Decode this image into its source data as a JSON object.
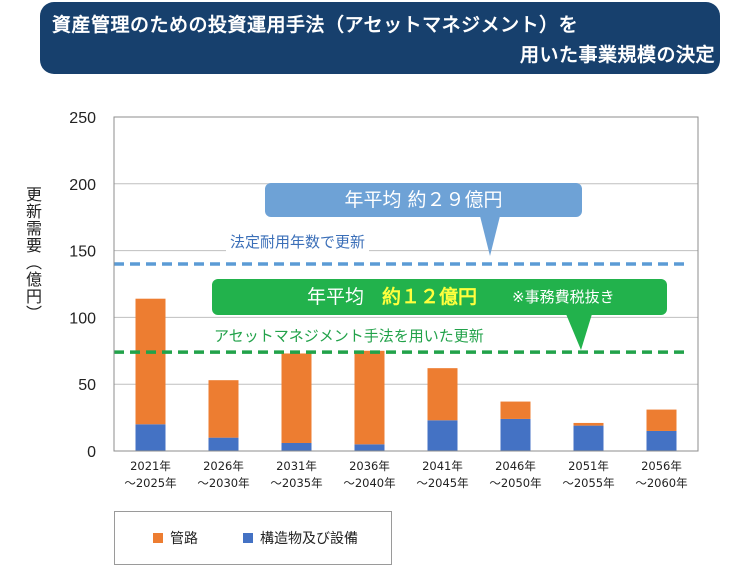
{
  "title": {
    "line1": "資産管理のための投資運用手法（アセットマネジメント）を",
    "line2": "用いた事業規模の決定"
  },
  "colors": {
    "banner": "#17406d",
    "pipe": "#ed7d31",
    "structure": "#4472c4",
    "blue_line": "#5b9bd5",
    "green_line": "#22a24a",
    "callout_blue": "#6ea2d6",
    "callout_green": "#22b24c",
    "highlight_yellow": "#ffff3d"
  },
  "chart_data": {
    "type": "bar",
    "stacked": true,
    "ylabel": "更新需要（億円）",
    "ylim": [
      0,
      250
    ],
    "yticks": [
      0,
      50,
      100,
      150,
      200,
      250
    ],
    "yticks_display": [
      "0",
      "50",
      "100",
      "150",
      "200",
      "250"
    ],
    "grid": true,
    "categories": [
      [
        "2021年",
        "～2025年"
      ],
      [
        "2026年",
        "～2030年"
      ],
      [
        "2031年",
        "～2035年"
      ],
      [
        "2036年",
        "～2040年"
      ],
      [
        "2041年",
        "～2045年"
      ],
      [
        "2046年",
        "～2050年"
      ],
      [
        "2051年",
        "～2055年"
      ],
      [
        "2056年",
        "～2060年"
      ]
    ],
    "series": [
      {
        "name": "構造物及び設備",
        "color": "#4472c4",
        "values": [
          20,
          10,
          6,
          5,
          23,
          24,
          19,
          15
        ]
      },
      {
        "name": "管路",
        "color": "#ed7d31",
        "values": [
          94,
          43,
          67,
          70,
          39,
          13,
          2,
          16
        ]
      }
    ],
    "reference_lines": [
      {
        "name": "法定耐用年数で更新",
        "value": 140,
        "color": "#5b9bd5",
        "style": "dashed"
      },
      {
        "name": "アセットマネジメント手法を用いた更新",
        "value": 74,
        "color": "#22a24a",
        "style": "dashed"
      }
    ],
    "legend": {
      "position": "bottom-left",
      "items": [
        {
          "label": "管路",
          "color": "#ed7d31"
        },
        {
          "label": "構造物及び設備",
          "color": "#4472c4"
        }
      ]
    }
  },
  "annotations": {
    "blue_callout": "年平均  約２９億円",
    "blue_line_label": "法定耐用年数で更新",
    "green_callout_lead": "年平均",
    "green_callout_value": "約１２億円",
    "green_callout_note": "※事務費税抜き",
    "green_line_label": "アセットマネジメント手法を用いた更新"
  }
}
